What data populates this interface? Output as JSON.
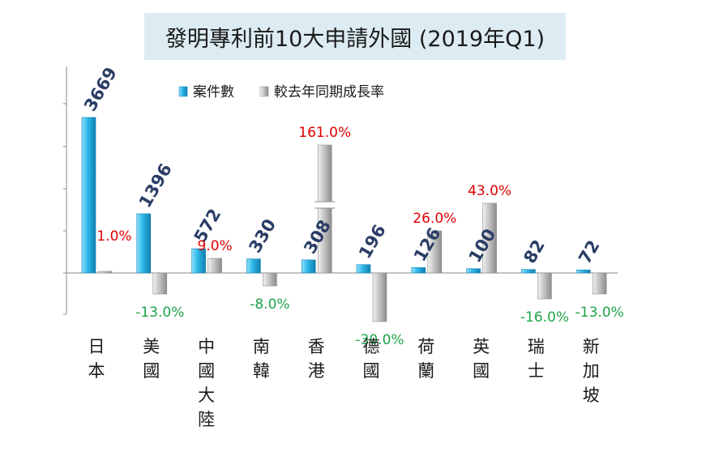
{
  "chart_data": {
    "type": "bar",
    "title": "發明專利前10大申請外國 (2019年Q1)",
    "categories": [
      "日本",
      "美國",
      "中國大陸",
      "南韓",
      "香港",
      "德國",
      "荷蘭",
      "英國",
      "瑞士",
      "新加坡"
    ],
    "series": [
      {
        "name": "案件數",
        "color": "#2bb5e6",
        "values": [
          3669,
          1396,
          572,
          330,
          308,
          196,
          126,
          100,
          82,
          72
        ],
        "labels": [
          "3669",
          "1396",
          "572",
          "330",
          "308",
          "196",
          "126",
          "100",
          "82",
          "72"
        ]
      },
      {
        "name": "較去年同期成長率",
        "color": "#b9b9b9",
        "values": [
          1.0,
          -13.0,
          9.0,
          -8.0,
          161.0,
          -30.0,
          26.0,
          43.0,
          -16.0,
          -13.0
        ],
        "labels": [
          "1.0%",
          "-13.0%",
          "9.0%",
          "-8.0%",
          "161.0%",
          "-30.0%",
          "26.0%",
          "43.0%",
          "-16.0%",
          "-13.0%"
        ]
      }
    ],
    "axis_break": "香港",
    "legend": "top",
    "grid": false
  }
}
